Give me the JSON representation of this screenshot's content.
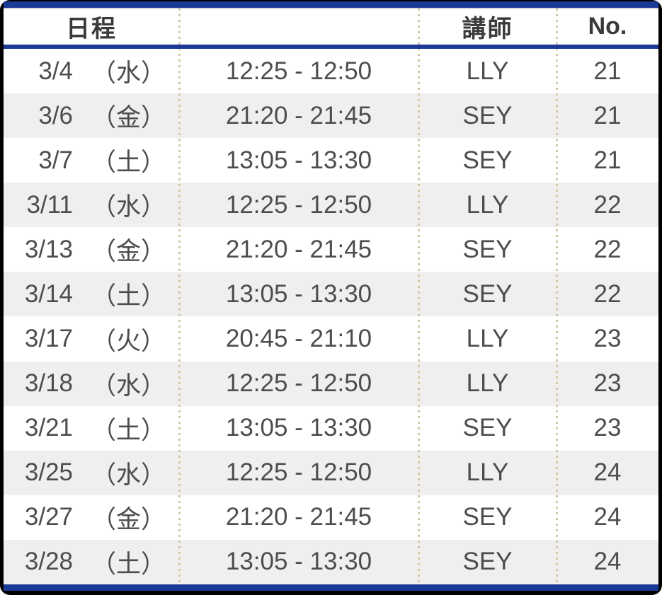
{
  "header": {
    "date_label": "日程",
    "time_label": "",
    "instructor_label": "講師",
    "number_label": "No."
  },
  "rows": [
    {
      "date": "3/4",
      "weekday": "（水）",
      "time": "12:25 - 12:50",
      "instructor": "LLY",
      "no": "21"
    },
    {
      "date": "3/6",
      "weekday": "（金）",
      "time": "21:20 - 21:45",
      "instructor": "SEY",
      "no": "21"
    },
    {
      "date": "3/7",
      "weekday": "（土）",
      "time": "13:05 - 13:30",
      "instructor": "SEY",
      "no": "21"
    },
    {
      "date": "3/11",
      "weekday": "（水）",
      "time": "12:25 - 12:50",
      "instructor": "LLY",
      "no": "22"
    },
    {
      "date": "3/13",
      "weekday": "（金）",
      "time": "21:20 - 21:45",
      "instructor": "SEY",
      "no": "22"
    },
    {
      "date": "3/14",
      "weekday": "（土）",
      "time": "13:05 - 13:30",
      "instructor": "SEY",
      "no": "22"
    },
    {
      "date": "3/17",
      "weekday": "（火）",
      "time": "20:45 - 21:10",
      "instructor": "LLY",
      "no": "23"
    },
    {
      "date": "3/18",
      "weekday": "（水）",
      "time": "12:25 - 12:50",
      "instructor": "LLY",
      "no": "23"
    },
    {
      "date": "3/21",
      "weekday": "（土）",
      "time": "13:05 - 13:30",
      "instructor": "SEY",
      "no": "23"
    },
    {
      "date": "3/25",
      "weekday": "（水）",
      "time": "12:25 - 12:50",
      "instructor": "LLY",
      "no": "24"
    },
    {
      "date": "3/27",
      "weekday": "（金）",
      "time": "21:20 - 21:45",
      "instructor": "SEY",
      "no": "24"
    },
    {
      "date": "3/28",
      "weekday": "（土）",
      "time": "13:05 - 13:30",
      "instructor": "SEY",
      "no": "24"
    }
  ],
  "colors": {
    "frame": "#000000",
    "accent_navy": "#1b3a96",
    "row_alt": "#f0efed",
    "dot_divider": "#cfc9a6",
    "text": "#4d4d4d",
    "header_text": "#3a3a3a"
  }
}
